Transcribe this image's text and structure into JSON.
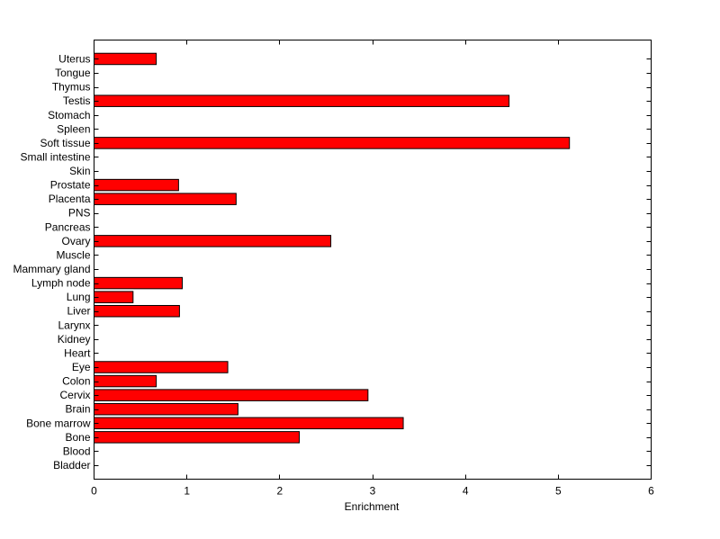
{
  "chart_data": {
    "type": "bar",
    "orientation": "horizontal",
    "title": "",
    "xlabel": "Enrichment",
    "ylabel": "",
    "xlim": [
      0,
      6
    ],
    "xticks": [
      0,
      1,
      2,
      3,
      4,
      5,
      6
    ],
    "grid": false,
    "legend": "none",
    "bar_color": "#ff0000",
    "bar_edge_color": "#000000",
    "categories": [
      "Bladder",
      "Blood",
      "Bone",
      "Bone marrow",
      "Brain",
      "Cervix",
      "Colon",
      "Eye",
      "Heart",
      "Kidney",
      "Larynx",
      "Liver",
      "Lung",
      "Lymph node",
      "Mammary gland",
      "Muscle",
      "Ovary",
      "Pancreas",
      "PNS",
      "Placenta",
      "Prostate",
      "Skin",
      "Small intestine",
      "Soft tissue",
      "Spleen",
      "Stomach",
      "Testis",
      "Thymus",
      "Tongue",
      "Uterus"
    ],
    "values": [
      0,
      0,
      2.21,
      3.33,
      1.55,
      2.95,
      0.67,
      1.44,
      0,
      0,
      0,
      0.92,
      0.42,
      0.95,
      0,
      0,
      2.55,
      0,
      0,
      1.53,
      0.91,
      0,
      0,
      5.12,
      0,
      0,
      4.47,
      0,
      0,
      0.67
    ]
  }
}
